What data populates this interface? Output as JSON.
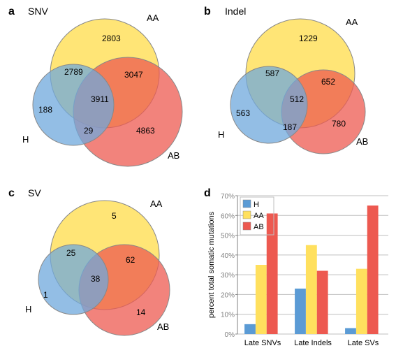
{
  "panels": {
    "a": {
      "letter": "a",
      "title": "SNV",
      "samples": {
        "H": "H",
        "AA": "AA",
        "AB": "AB"
      },
      "values": {
        "H_only": "188",
        "AA_only": "2803",
        "AB_only": "4863",
        "H_AA": "2789",
        "H_AB": "29",
        "AA_AB": "3047",
        "all": "3911"
      }
    },
    "b": {
      "letter": "b",
      "title": "Indel",
      "samples": {
        "H": "H",
        "AA": "AA",
        "AB": "AB"
      },
      "values": {
        "H_only": "563",
        "AA_only": "1229",
        "AB_only": "780",
        "H_AA": "587",
        "H_AB": "187",
        "AA_AB": "652",
        "all": "512"
      }
    },
    "c": {
      "letter": "c",
      "title": "SV",
      "samples": {
        "H": "H",
        "AA": "AA",
        "AB": "AB"
      },
      "values": {
        "H_only": "1",
        "AA_only": "5",
        "AB_only": "14",
        "H_AA": "25",
        "H_AB": "",
        "AA_AB": "62",
        "all": "38"
      }
    },
    "d": {
      "letter": "d",
      "ylabel": "percent total somatic mutations",
      "categories": [
        "Late SNVs",
        "Late Indels",
        "Late SVs"
      ],
      "series": [
        {
          "name": "H",
          "color": "#5b9bd5",
          "values": [
            5,
            23,
            3
          ]
        },
        {
          "name": "AA",
          "color": "#ffe05e",
          "values": [
            35,
            45,
            33
          ]
        },
        {
          "name": "AB",
          "color": "#ed5950",
          "values": [
            61,
            32,
            65
          ]
        }
      ],
      "ylim": [
        0,
        70
      ],
      "ytick_step": 10,
      "colors": {
        "grid": "#bfbfbf",
        "axis": "#808080",
        "text": "#808080"
      }
    }
  },
  "venn_colors": {
    "H": "#6fa8dc",
    "AA": "#ffe05e",
    "AB": "#ed5950",
    "H_AA": "#8fd8a0",
    "H_AB": "#c48d8f",
    "AA_AB": "#f5a24b",
    "all": "#7fbf5a",
    "stroke": "#888888"
  }
}
